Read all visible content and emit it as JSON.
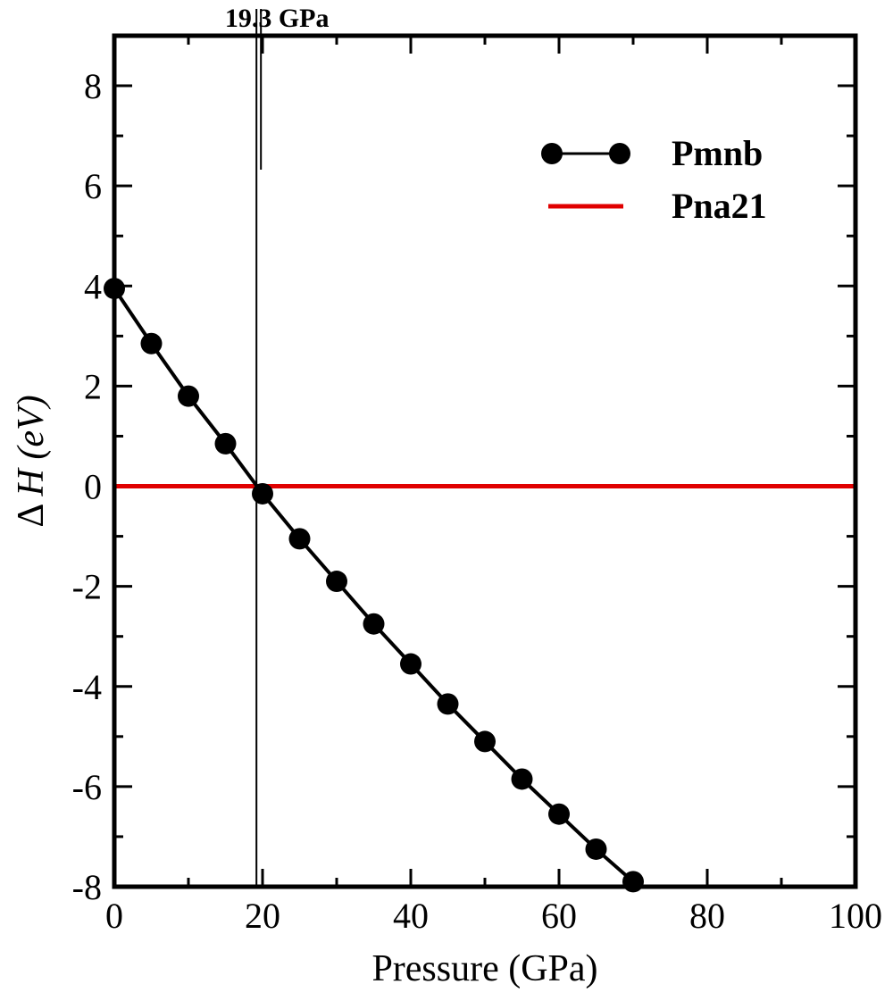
{
  "chart_data": {
    "type": "line",
    "xlabel": "Pressure (GPa)",
    "ylabel": "Δ H (eV)",
    "ylabel_symbol": "Δ",
    "ylabel_var": "H",
    "ylabel_unit": "(eV)",
    "xlim": [
      0,
      100
    ],
    "ylim": [
      -8,
      9
    ],
    "xticks": [
      0,
      20,
      40,
      60,
      80,
      100
    ],
    "xtick_labels": [
      "0",
      "20",
      "40",
      "60",
      "80",
      "100"
    ],
    "yticks": [
      -8,
      -6,
      -4,
      -2,
      0,
      2,
      4,
      6,
      8
    ],
    "ytick_labels": [
      "-8",
      "-6",
      "-4",
      "-2",
      "0",
      "2",
      "4",
      "6",
      "8"
    ],
    "grid": false,
    "legend_position": "top-right",
    "annotation": {
      "label": "19.3 GPa",
      "x": 19.3
    },
    "series": [
      {
        "name": "Pmnb",
        "color": "#000000",
        "marker": "circle",
        "x": [
          0,
          5,
          10,
          15,
          20,
          25,
          30,
          35,
          40,
          45,
          50,
          55,
          60,
          65,
          70
        ],
        "y": [
          3.95,
          2.85,
          1.8,
          0.85,
          -0.15,
          -1.05,
          -1.9,
          -2.75,
          -3.55,
          -4.35,
          -5.1,
          -5.85,
          -6.55,
          -7.25,
          -7.9
        ]
      },
      {
        "name": "Pna21",
        "color": "#e00000",
        "marker": "none",
        "x": [
          0,
          100
        ],
        "y": [
          0,
          0
        ]
      }
    ]
  }
}
